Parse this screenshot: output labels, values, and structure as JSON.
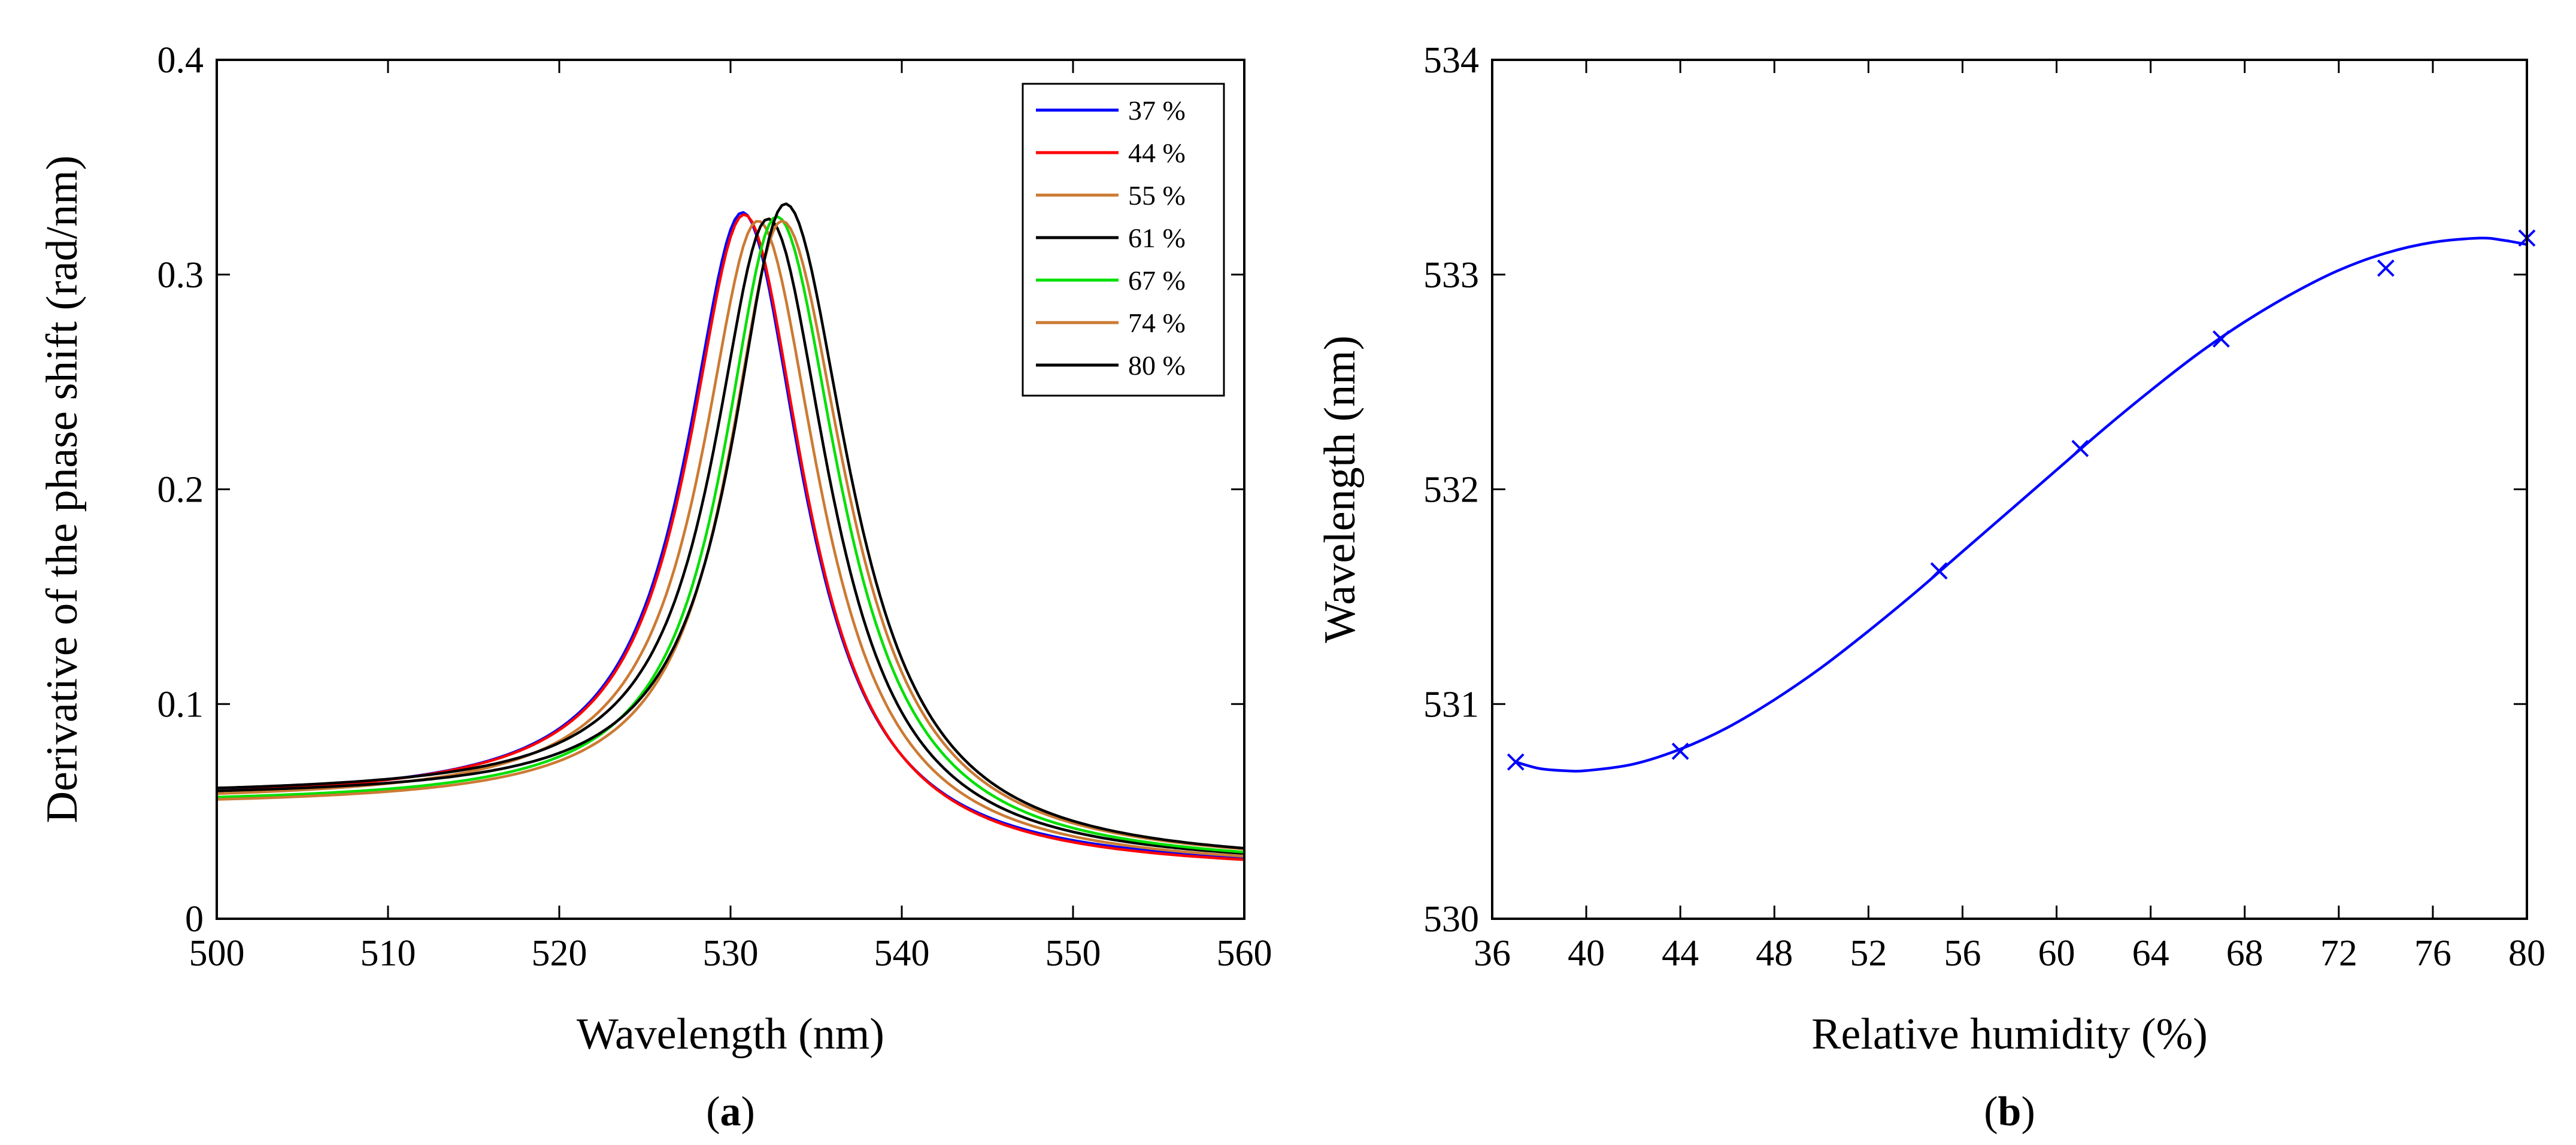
{
  "chart_data": [
    {
      "id": "a",
      "type": "line",
      "caption": {
        "open": "(",
        "letter": "a",
        "close": ")"
      },
      "xlabel": "Wavelength (nm)",
      "ylabel": "Derivative of the phase shift (rad/nm)",
      "xlim": [
        500,
        560
      ],
      "ylim": [
        0,
        0.4
      ],
      "xticks": [
        "500",
        "510",
        "520",
        "530",
        "540",
        "550",
        "560"
      ],
      "yticks": [
        "0",
        "0.1",
        "0.2",
        "0.3",
        "0.4"
      ],
      "grid": false,
      "legend_position": "top-right",
      "series": [
        {
          "name": "37 %",
          "color": "#0000ff",
          "peak": 530.7,
          "height": 0.329,
          "left_width": 4.0,
          "right_width": 4.3,
          "base_left": 0.055,
          "base_right": 0.022
        },
        {
          "name": "44 %",
          "color": "#ff0000",
          "peak": 530.8,
          "height": 0.328,
          "left_width": 4.0,
          "right_width": 4.3,
          "base_left": 0.055,
          "base_right": 0.021
        },
        {
          "name": "55 %",
          "color": "#cc7a33",
          "peak": 531.6,
          "height": 0.325,
          "left_width": 4.0,
          "right_width": 4.4,
          "base_left": 0.054,
          "base_right": 0.022
        },
        {
          "name": "61 %",
          "color": "#000000",
          "peak": 532.2,
          "height": 0.326,
          "left_width": 3.9,
          "right_width": 4.4,
          "base_left": 0.057,
          "base_right": 0.023
        },
        {
          "name": "67 %",
          "color": "#00e000",
          "peak": 532.7,
          "height": 0.327,
          "left_width": 3.8,
          "right_width": 4.5,
          "base_left": 0.053,
          "base_right": 0.023
        },
        {
          "name": "74 %",
          "color": "#cc7a33",
          "peak": 533.0,
          "height": 0.325,
          "left_width": 3.8,
          "right_width": 4.6,
          "base_left": 0.052,
          "base_right": 0.024
        },
        {
          "name": "80 %",
          "color": "#000000",
          "peak": 533.2,
          "height": 0.333,
          "left_width": 3.8,
          "right_width": 4.6,
          "base_left": 0.056,
          "base_right": 0.024
        }
      ]
    },
    {
      "id": "b",
      "type": "scatter",
      "caption": {
        "open": "(",
        "letter": "b",
        "close": ")"
      },
      "xlabel": "Relative humidity (%)",
      "ylabel": "Wavelength (nm)",
      "xlim": [
        36,
        80
      ],
      "ylim": [
        530,
        534
      ],
      "xticks": [
        "36",
        "40",
        "44",
        "48",
        "52",
        "56",
        "60",
        "64",
        "68",
        "72",
        "76",
        "80"
      ],
      "yticks": [
        "530",
        "531",
        "532",
        "533",
        "534"
      ],
      "grid": false,
      "color": "#0000ff",
      "points": {
        "x": [
          37,
          44,
          55,
          61,
          67,
          74,
          80
        ],
        "y": [
          530.73,
          530.78,
          531.62,
          532.19,
          532.7,
          533.03,
          533.17
        ]
      },
      "fit_curve": {
        "x": [
          37,
          38,
          39,
          40,
          42,
          44,
          46,
          48,
          50,
          52,
          54,
          56,
          58,
          60,
          62,
          64,
          66,
          68,
          70,
          72,
          74,
          76,
          78,
          79,
          80
        ],
        "y": [
          530.73,
          530.7,
          530.69,
          530.69,
          530.72,
          530.79,
          530.89,
          531.02,
          531.17,
          531.34,
          531.52,
          531.71,
          531.9,
          532.09,
          532.28,
          532.46,
          532.63,
          532.78,
          532.91,
          533.02,
          533.1,
          533.15,
          533.17,
          533.16,
          533.14
        ]
      }
    }
  ]
}
